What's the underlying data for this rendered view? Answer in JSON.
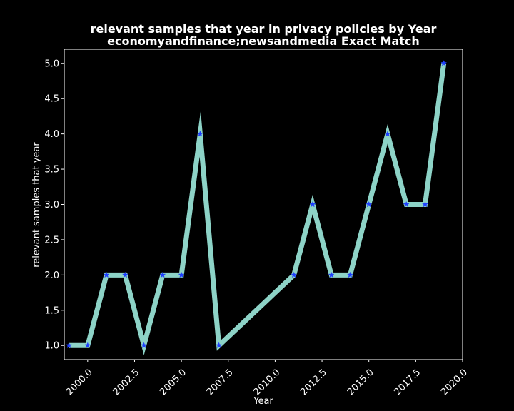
{
  "chart_data": {
    "type": "line",
    "title_line1": "relevant samples that year in privacy policies by Year",
    "title_line2": "economyandfinance;newsandmedia Exact Match",
    "xlabel": "Year",
    "ylabel": "relevant samples that year",
    "xlim": [
      1998.75,
      2020.0
    ],
    "ylim": [
      0.8,
      5.2
    ],
    "x_ticks": [
      2000.0,
      2002.5,
      2005.0,
      2007.5,
      2010.0,
      2012.5,
      2015.0,
      2017.5,
      2020.0
    ],
    "x_tick_labels": [
      "2000.0",
      "2002.5",
      "2005.0",
      "2007.5",
      "2010.0",
      "2012.5",
      "2015.0",
      "2017.5",
      "2020.0"
    ],
    "y_ticks": [
      1.0,
      1.5,
      2.0,
      2.5,
      3.0,
      3.5,
      4.0,
      4.5,
      5.0
    ],
    "y_tick_labels": [
      "1.0",
      "1.5",
      "2.0",
      "2.5",
      "3.0",
      "3.5",
      "4.0",
      "4.5",
      "5.0"
    ],
    "grid": false,
    "line_color": "#8dd3c7",
    "marker_color": "#1f3fff",
    "marker": "star",
    "series": [
      {
        "x": [
          1999,
          2000,
          2001,
          2002,
          2003,
          2004,
          2005,
          2006,
          2007,
          2011,
          2012,
          2013,
          2014,
          2015,
          2016,
          2017,
          2018,
          2019
        ],
        "y": [
          1,
          1,
          2,
          2,
          1,
          2,
          2,
          4,
          1,
          2,
          3,
          2,
          2,
          3,
          4,
          3,
          3,
          5
        ]
      }
    ]
  }
}
